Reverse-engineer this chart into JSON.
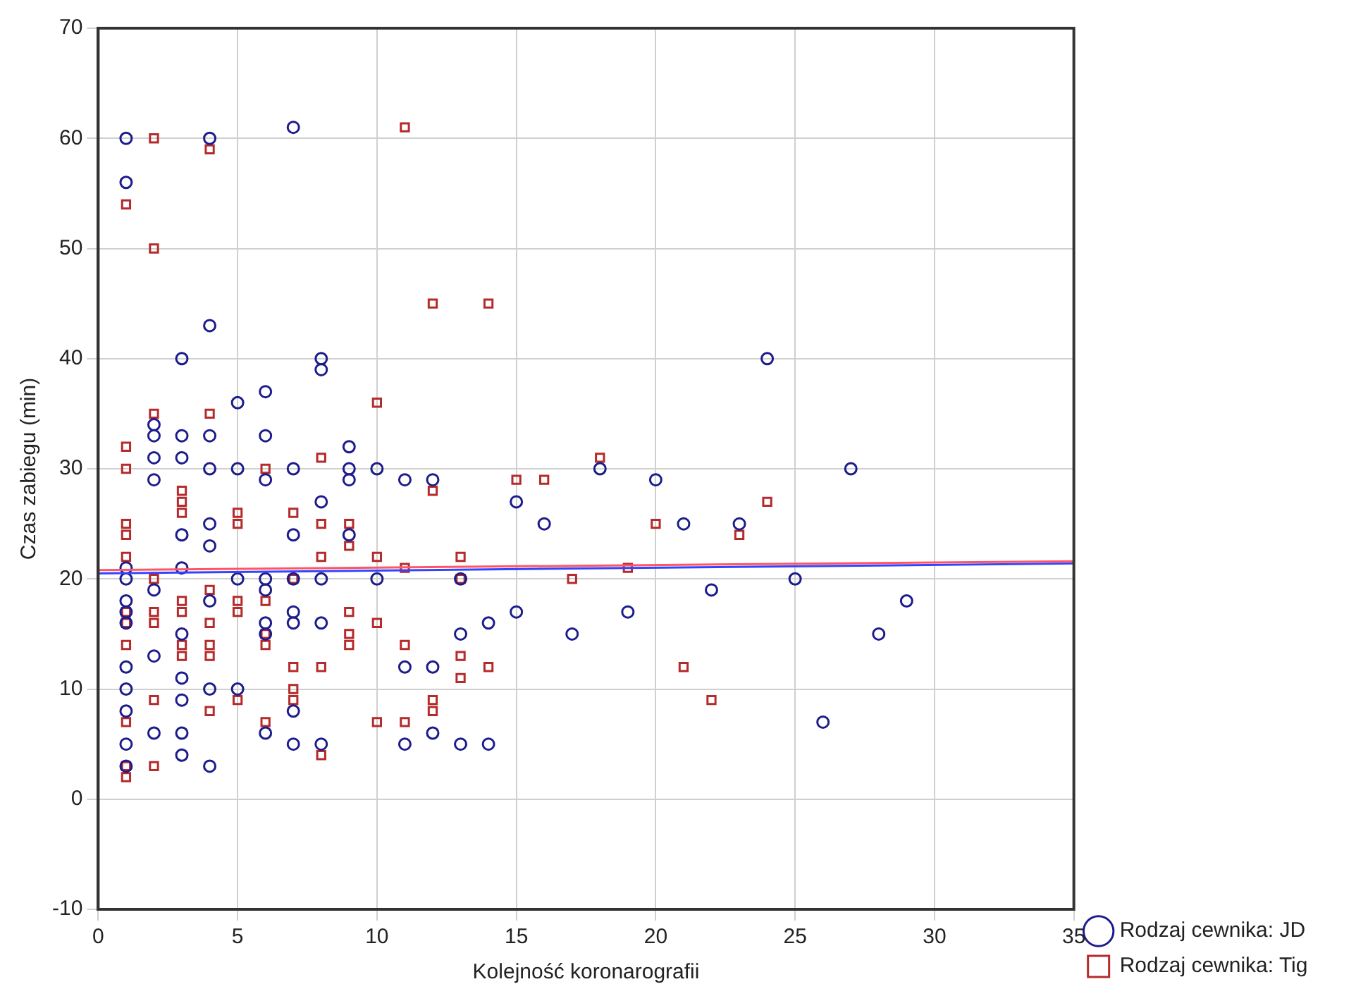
{
  "chart_data": {
    "type": "scatter",
    "xlabel": "Kolejność koronarografii",
    "ylabel": "Czas zabiegu (min)",
    "xlim": [
      0,
      35
    ],
    "xticks": [
      0,
      5,
      10,
      15,
      20,
      25,
      30,
      35
    ],
    "ylim": [
      -10,
      70
    ],
    "yticks": [
      -10,
      0,
      10,
      20,
      30,
      40,
      50,
      60,
      70
    ],
    "grid": true,
    "legend": "bottom right",
    "series": [
      {
        "name": "Rodzaj cewnika: JD",
        "color": "#1c1c8c",
        "marker": "circle",
        "x": [
          1,
          1,
          1,
          1,
          1,
          1,
          1,
          1,
          1,
          1,
          1,
          1,
          2,
          2,
          2,
          2,
          2,
          2,
          2,
          3,
          3,
          3,
          3,
          3,
          3,
          3,
          3,
          3,
          3,
          4,
          4,
          4,
          4,
          4,
          4,
          4,
          4,
          4,
          5,
          5,
          5,
          5,
          6,
          6,
          6,
          6,
          6,
          6,
          6,
          6,
          7,
          7,
          7,
          7,
          7,
          7,
          7,
          7,
          8,
          8,
          8,
          8,
          8,
          8,
          9,
          9,
          9,
          9,
          10,
          10,
          11,
          11,
          11,
          12,
          12,
          12,
          13,
          13,
          13,
          14,
          14,
          15,
          15,
          16,
          17,
          18,
          19,
          20,
          21,
          22,
          23,
          24,
          25,
          26,
          27,
          28,
          29
        ],
        "values": [
          60,
          56,
          21,
          20,
          18,
          17,
          16,
          12,
          10,
          8,
          5,
          3,
          34,
          33,
          31,
          29,
          19,
          13,
          6,
          40,
          33,
          31,
          24,
          21,
          15,
          11,
          9,
          6,
          4,
          60,
          43,
          33,
          30,
          25,
          23,
          18,
          10,
          3,
          36,
          30,
          20,
          10,
          37,
          33,
          29,
          20,
          19,
          16,
          15,
          6,
          61,
          30,
          24,
          20,
          17,
          16,
          8,
          5,
          40,
          39,
          27,
          20,
          16,
          5,
          32,
          30,
          29,
          24,
          30,
          20,
          29,
          12,
          5,
          29,
          12,
          6,
          20,
          15,
          5,
          16,
          5,
          27,
          17,
          25,
          15,
          30,
          17,
          29,
          25,
          19,
          25,
          40,
          20,
          7,
          30,
          15,
          18
        ]
      },
      {
        "name": "Rodzaj cewnika: Tig",
        "color": "#b52a2a",
        "marker": "square",
        "x": [
          1,
          1,
          1,
          1,
          1,
          1,
          1,
          1,
          1,
          1,
          1,
          1,
          2,
          2,
          2,
          2,
          2,
          2,
          2,
          2,
          3,
          3,
          3,
          3,
          3,
          3,
          3,
          4,
          4,
          4,
          4,
          4,
          4,
          4,
          5,
          5,
          5,
          5,
          5,
          6,
          6,
          6,
          6,
          6,
          7,
          7,
          7,
          7,
          7,
          8,
          8,
          8,
          8,
          8,
          9,
          9,
          9,
          9,
          9,
          10,
          10,
          10,
          10,
          11,
          11,
          11,
          11,
          12,
          12,
          12,
          12,
          13,
          13,
          13,
          13,
          14,
          14,
          15,
          16,
          17,
          18,
          19,
          20,
          21,
          22,
          23,
          24
        ],
        "values": [
          54,
          32,
          30,
          25,
          24,
          22,
          17,
          16,
          14,
          7,
          3,
          2,
          60,
          50,
          35,
          20,
          17,
          16,
          9,
          3,
          28,
          27,
          26,
          18,
          17,
          14,
          13,
          59,
          35,
          19,
          16,
          14,
          13,
          8,
          26,
          25,
          18,
          17,
          9,
          30,
          18,
          15,
          14,
          7,
          26,
          20,
          12,
          10,
          9,
          31,
          25,
          22,
          12,
          4,
          25,
          23,
          17,
          15,
          14,
          36,
          22,
          16,
          7,
          61,
          21,
          14,
          7,
          45,
          28,
          9,
          8,
          22,
          20,
          13,
          11,
          45,
          12,
          29,
          29,
          20,
          31,
          21,
          25,
          12,
          9,
          24,
          27
        ]
      },
      {
        "type": "line",
        "color": "#3344ff",
        "x": [
          0,
          35
        ],
        "values": [
          20.5,
          21.4
        ]
      },
      {
        "type": "line",
        "color": "#ff5566",
        "x": [
          0,
          35
        ],
        "values": [
          20.8,
          21.6
        ]
      }
    ]
  }
}
